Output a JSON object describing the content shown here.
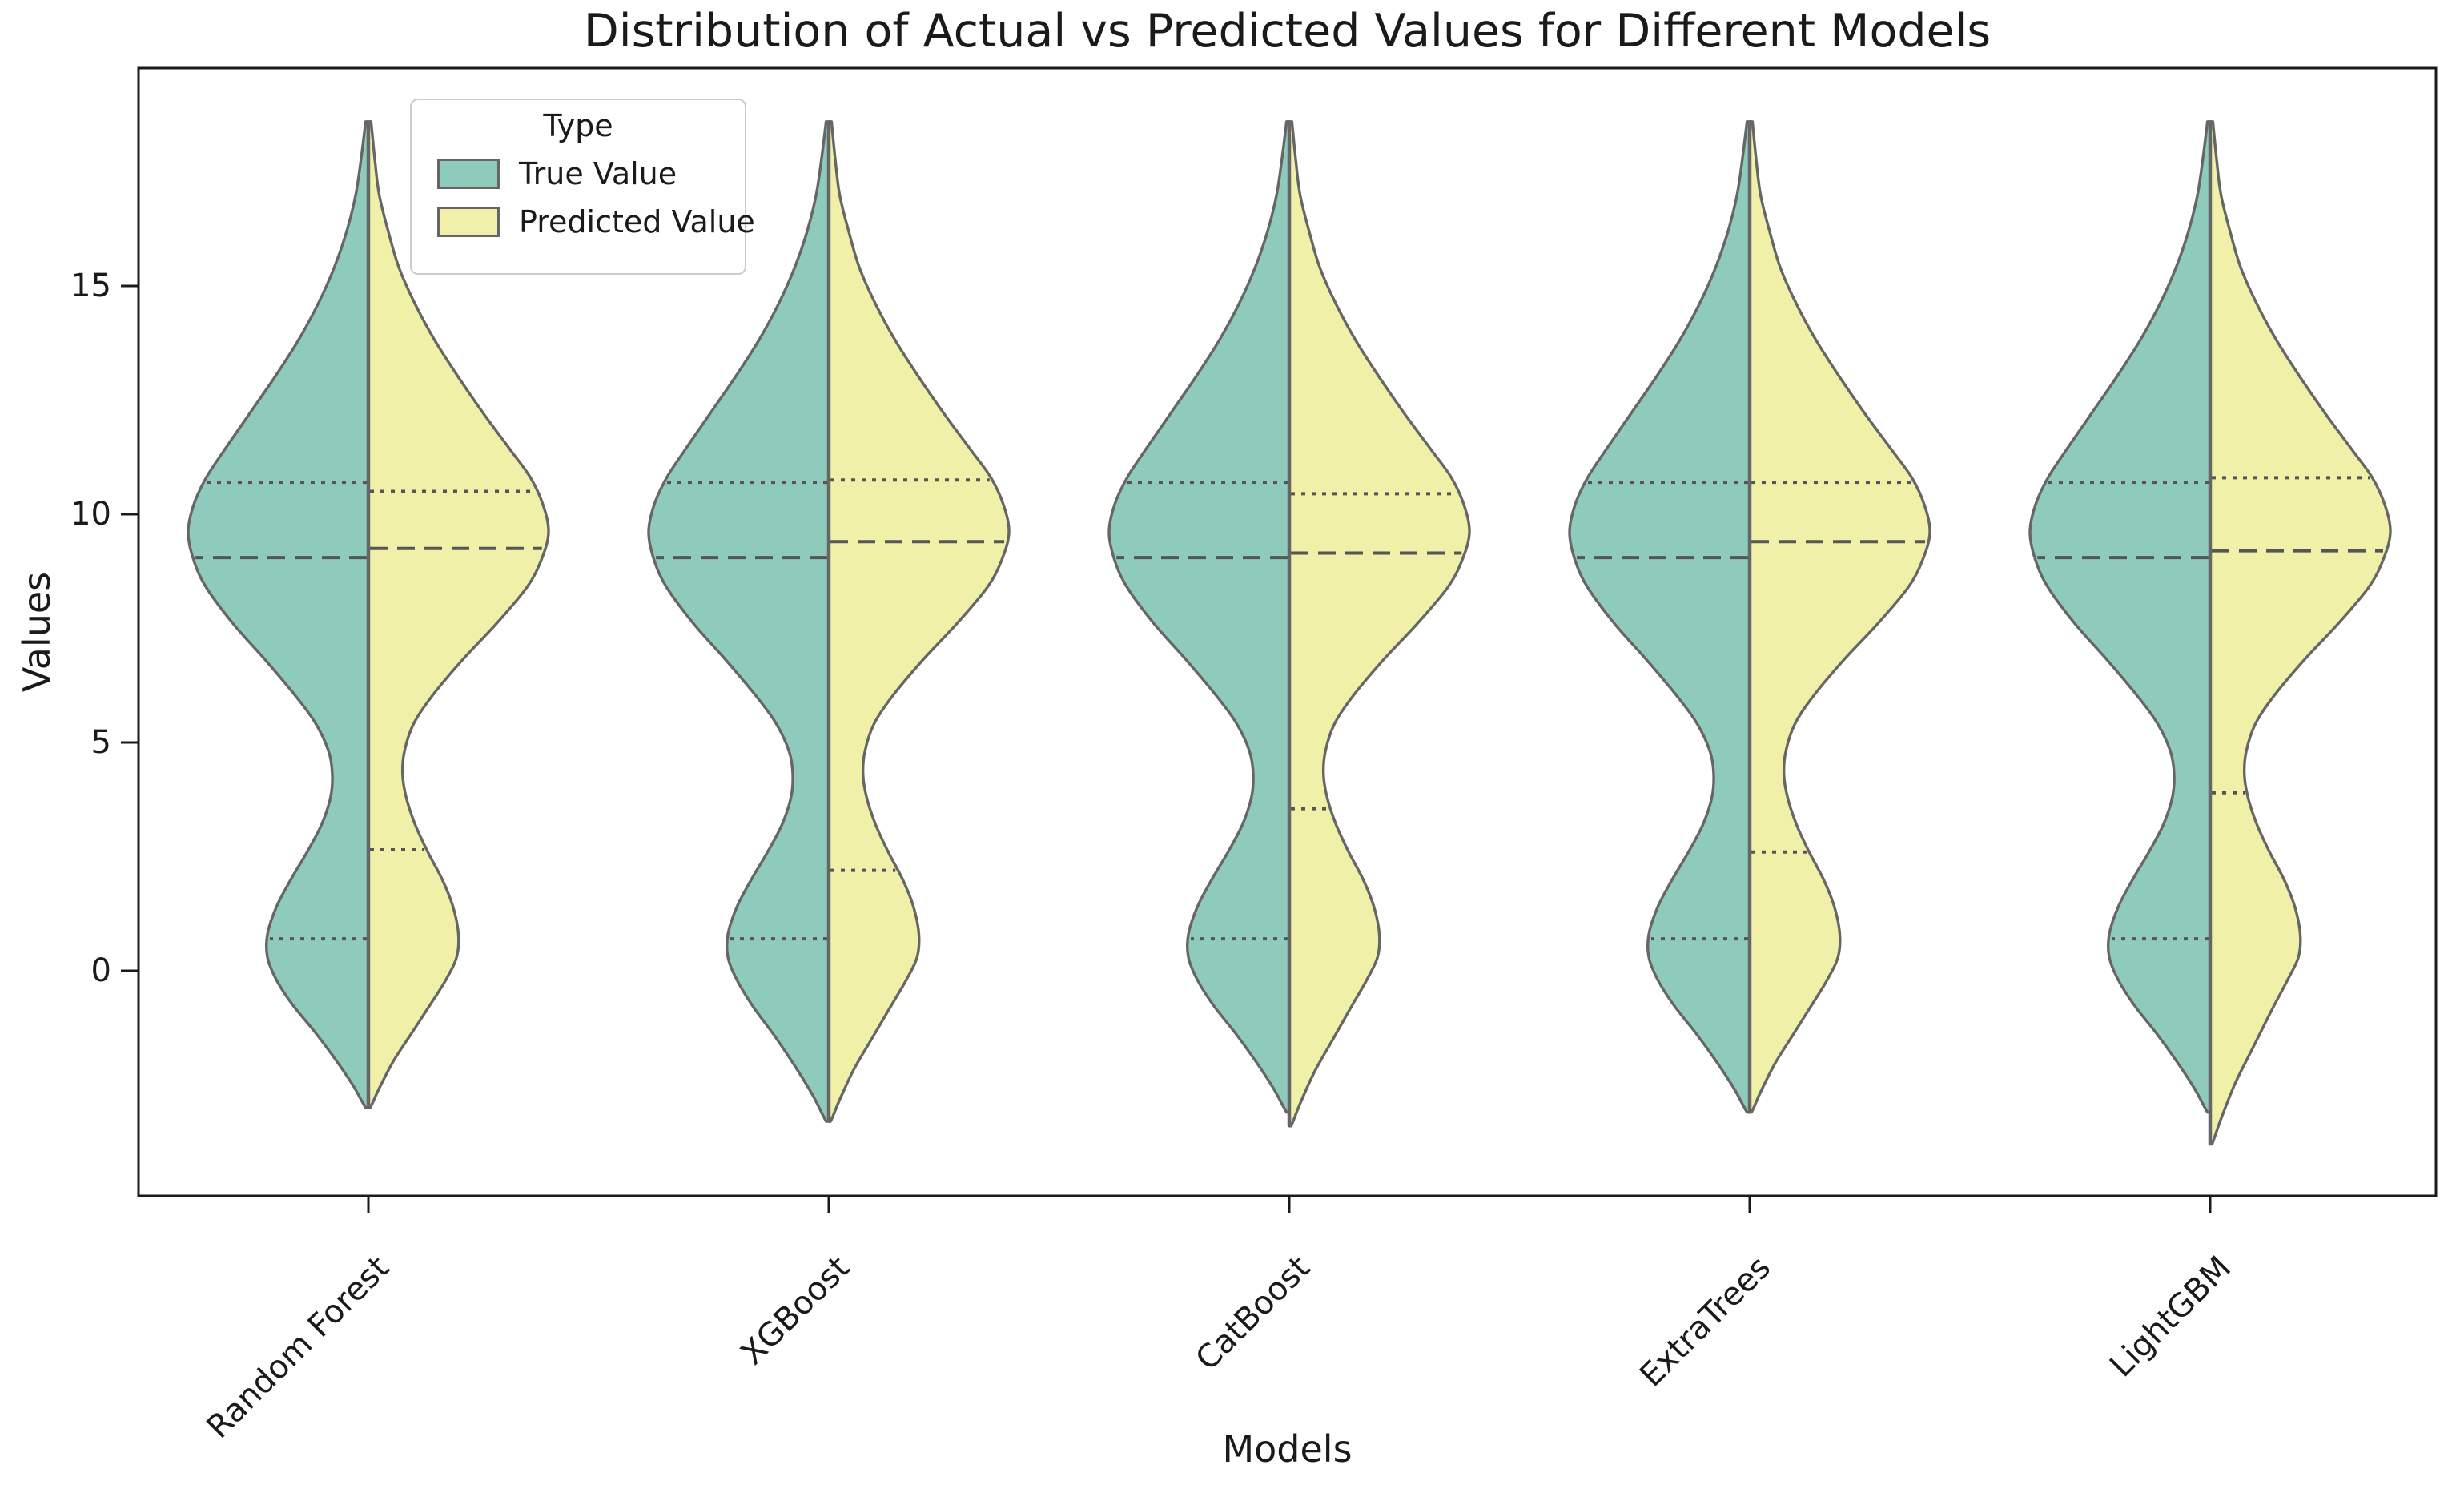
{
  "title": "Distribution of Actual vs Predicted Values for Different Models",
  "axes": {
    "xlabel": "Models",
    "ylabel": "Values",
    "yticks": [
      0,
      5,
      10,
      15
    ],
    "ylim_approx": [
      -4.9,
      19.8
    ]
  },
  "legend": {
    "title": "Type",
    "position": "upper-left",
    "items": [
      {
        "label": "True Value",
        "color": "#8ecbbd"
      },
      {
        "label": "Predicted Value",
        "color": "#f0f0a8"
      }
    ]
  },
  "colors": {
    "violin_edge": "#666666",
    "quartile_line": "#555555",
    "axis_text": "#1a1a1a",
    "spine": "#1a1a1a",
    "background": "#ffffff"
  },
  "chart_data": {
    "type": "violin",
    "split": true,
    "inner": "quartile",
    "title": "Distribution of Actual vs Predicted Values for Different Models",
    "xlabel": "Models",
    "ylabel": "Values",
    "yticks": [
      0,
      5,
      10,
      15
    ],
    "categories": [
      "Random Forest",
      "XGBoost",
      "CatBoost",
      "ExtraTrees",
      "LightGBM"
    ],
    "series": [
      {
        "name": "True Value",
        "color": "#8ecbbd",
        "side": "left",
        "profile": "true",
        "stats": [
          {
            "min": -3.0,
            "q1": 0.7,
            "median": 9.05,
            "q3": 10.7,
            "max": 18.6
          },
          {
            "min": -3.3,
            "q1": 0.7,
            "median": 9.05,
            "q3": 10.7,
            "max": 18.6
          },
          {
            "min": -3.1,
            "q1": 0.7,
            "median": 9.05,
            "q3": 10.7,
            "max": 18.6
          },
          {
            "min": -3.1,
            "q1": 0.7,
            "median": 9.05,
            "q3": 10.7,
            "max": 18.6
          },
          {
            "min": -3.1,
            "q1": 0.7,
            "median": 9.05,
            "q3": 10.7,
            "max": 18.6
          }
        ]
      },
      {
        "name": "Predicted Value",
        "color": "#f0f0a8",
        "side": "right",
        "profile": "pred",
        "stats": [
          {
            "min": -3.0,
            "q1": 2.65,
            "median": 9.25,
            "q3": 10.5,
            "max": 18.6
          },
          {
            "min": -3.3,
            "q1": 2.2,
            "median": 9.4,
            "q3": 10.75,
            "max": 18.6
          },
          {
            "min": -3.4,
            "q1": 3.55,
            "median": 9.15,
            "q3": 10.45,
            "max": 18.6
          },
          {
            "min": -3.1,
            "q1": 2.6,
            "median": 9.4,
            "q3": 10.7,
            "max": 18.6
          },
          {
            "min": -3.8,
            "q1": 3.9,
            "median": 9.2,
            "q3": 10.8,
            "max": 18.6
          }
        ]
      }
    ],
    "profiles": {
      "note": "pairs of [value, relative half-width]; bimodal KDE: main mode near 9.6, secondary mode near 0.5, antimode near 4.3",
      "true": [
        [
          18.6,
          0.015
        ],
        [
          17.8,
          0.04
        ],
        [
          17.0,
          0.07
        ],
        [
          16.2,
          0.12
        ],
        [
          15.4,
          0.19
        ],
        [
          14.6,
          0.28
        ],
        [
          13.8,
          0.39
        ],
        [
          13.0,
          0.52
        ],
        [
          12.2,
          0.66
        ],
        [
          11.4,
          0.8
        ],
        [
          10.8,
          0.9
        ],
        [
          10.2,
          0.97
        ],
        [
          9.6,
          1.0
        ],
        [
          9.0,
          0.97
        ],
        [
          8.4,
          0.9
        ],
        [
          7.6,
          0.75
        ],
        [
          6.8,
          0.57
        ],
        [
          6.0,
          0.4
        ],
        [
          5.4,
          0.29
        ],
        [
          4.8,
          0.22
        ],
        [
          4.3,
          0.2
        ],
        [
          3.8,
          0.21
        ],
        [
          3.2,
          0.26
        ],
        [
          2.6,
          0.34
        ],
        [
          2.0,
          0.43
        ],
        [
          1.4,
          0.51
        ],
        [
          0.8,
          0.56
        ],
        [
          0.3,
          0.56
        ],
        [
          -0.2,
          0.51
        ],
        [
          -0.7,
          0.42
        ],
        [
          -1.2,
          0.3
        ],
        [
          -1.7,
          0.19
        ],
        [
          -2.2,
          0.09
        ],
        [
          -2.5,
          0.04
        ],
        [
          -2.65,
          0.015
        ]
      ],
      "pred": [
        [
          18.6,
          0.015
        ],
        [
          17.8,
          0.035
        ],
        [
          17.0,
          0.06
        ],
        [
          16.2,
          0.11
        ],
        [
          15.4,
          0.17
        ],
        [
          14.6,
          0.26
        ],
        [
          13.8,
          0.37
        ],
        [
          13.0,
          0.5
        ],
        [
          12.2,
          0.64
        ],
        [
          11.4,
          0.79
        ],
        [
          10.8,
          0.9
        ],
        [
          10.2,
          0.97
        ],
        [
          9.6,
          1.0
        ],
        [
          9.0,
          0.96
        ],
        [
          8.4,
          0.88
        ],
        [
          7.6,
          0.71
        ],
        [
          6.8,
          0.52
        ],
        [
          6.0,
          0.35
        ],
        [
          5.4,
          0.25
        ],
        [
          4.8,
          0.2
        ],
        [
          4.3,
          0.19
        ],
        [
          3.8,
          0.21
        ],
        [
          3.2,
          0.26
        ],
        [
          2.6,
          0.33
        ],
        [
          2.0,
          0.41
        ],
        [
          1.4,
          0.47
        ],
        [
          0.8,
          0.5
        ],
        [
          0.3,
          0.49
        ],
        [
          -0.2,
          0.43
        ],
        [
          -0.7,
          0.34
        ],
        [
          -1.2,
          0.24
        ],
        [
          -1.7,
          0.14
        ],
        [
          -2.2,
          0.06
        ],
        [
          -2.45,
          0.025
        ],
        [
          -2.55,
          0.01
        ]
      ]
    }
  }
}
